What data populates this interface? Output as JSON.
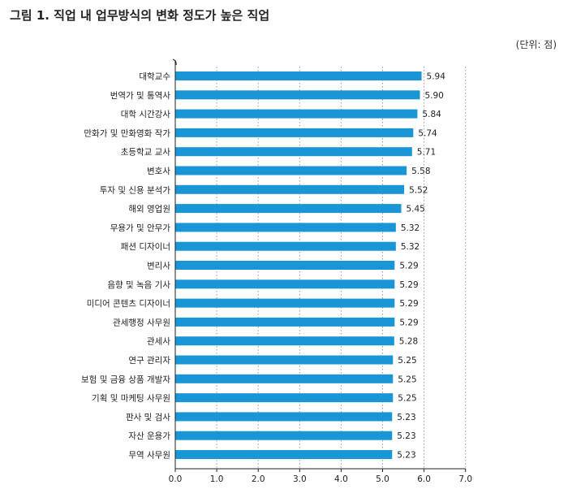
{
  "title": "그림 1. 직업 내 업무방식의 변화 정도가 높은 직업",
  "unit": "(단위: 점)",
  "chart_data": {
    "type": "bar",
    "orientation": "horizontal",
    "title": "그림 1. 직업 내 업무방식의 변화 정도가 높은 직업",
    "unit": "(단위: 점)",
    "categories": [
      "대학교수",
      "번역가 및 통역사",
      "대학 시간강사",
      "만화가 및 만화영화 작가",
      "초등학교 교사",
      "변호사",
      "투자 및 신용 분석가",
      "해외 영업원",
      "무용가 및 안무가",
      "패션 디자이너",
      "변리사",
      "음향 및 녹음 기사",
      "미디어 콘텐츠 디자이너",
      "관세행정 사무원",
      "관세사",
      "연구 관리자",
      "보험 및 금융 상품 개발자",
      "기획 및 마케팅 사무원",
      "판사 및 검사",
      "자산 운용가",
      "무역 사무원"
    ],
    "values": [
      5.94,
      5.9,
      5.84,
      5.74,
      5.71,
      5.58,
      5.52,
      5.45,
      5.32,
      5.32,
      5.29,
      5.29,
      5.29,
      5.29,
      5.28,
      5.25,
      5.25,
      5.25,
      5.23,
      5.23,
      5.23
    ],
    "value_labels": [
      "5.94",
      "5.90",
      "5.84",
      "5.74",
      "5.71",
      "5.58",
      "5.52",
      "5.45",
      "5.32",
      "5.32",
      "5.29",
      "5.29",
      "5.29",
      "5.29",
      "5.28",
      "5.25",
      "5.25",
      "5.25",
      "5.23",
      "5.23",
      "5.23"
    ],
    "xlim": [
      0,
      7
    ],
    "ticks": [
      "0.0",
      "1.0",
      "2.0",
      "3.0",
      "4.0",
      "5.0",
      "6.0",
      "7.0"
    ],
    "grid": "vertical dotted",
    "bar_color": "#1a96d6"
  }
}
